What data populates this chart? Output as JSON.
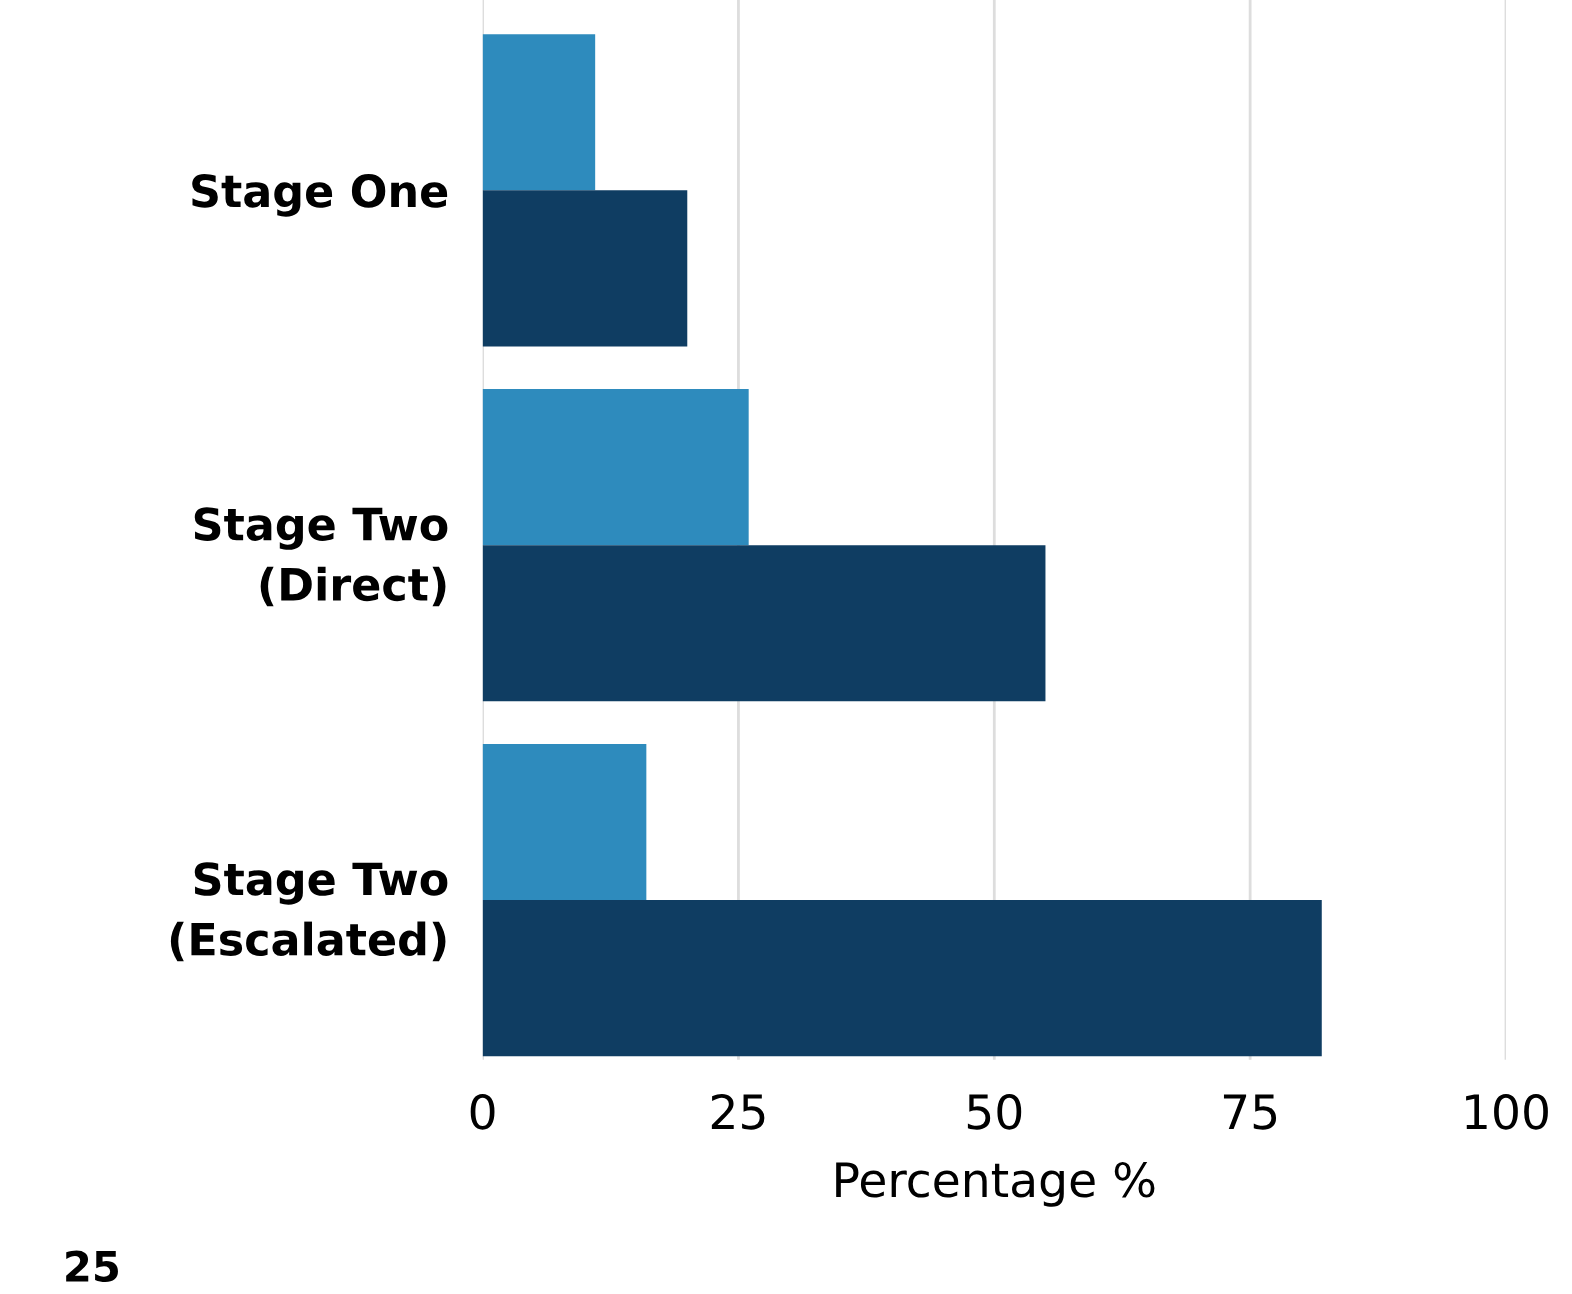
{
  "chart_data": {
    "type": "bar",
    "orientation": "horizontal",
    "categories": [
      "Stage One",
      "Stage Two\n(Direct)",
      "Stage Two\n(Escalated)"
    ],
    "series": [
      {
        "color": "#2e8bbd",
        "values": [
          11,
          26,
          16
        ]
      },
      {
        "color": "#0f3d62",
        "values": [
          20,
          55,
          82
        ]
      }
    ],
    "xlabel": "Percentage %",
    "xlim": [
      0,
      100
    ],
    "xticks": [
      0,
      25,
      50,
      75,
      100
    ],
    "grid": "x",
    "legend": false,
    "annotations": [
      "25"
    ]
  }
}
